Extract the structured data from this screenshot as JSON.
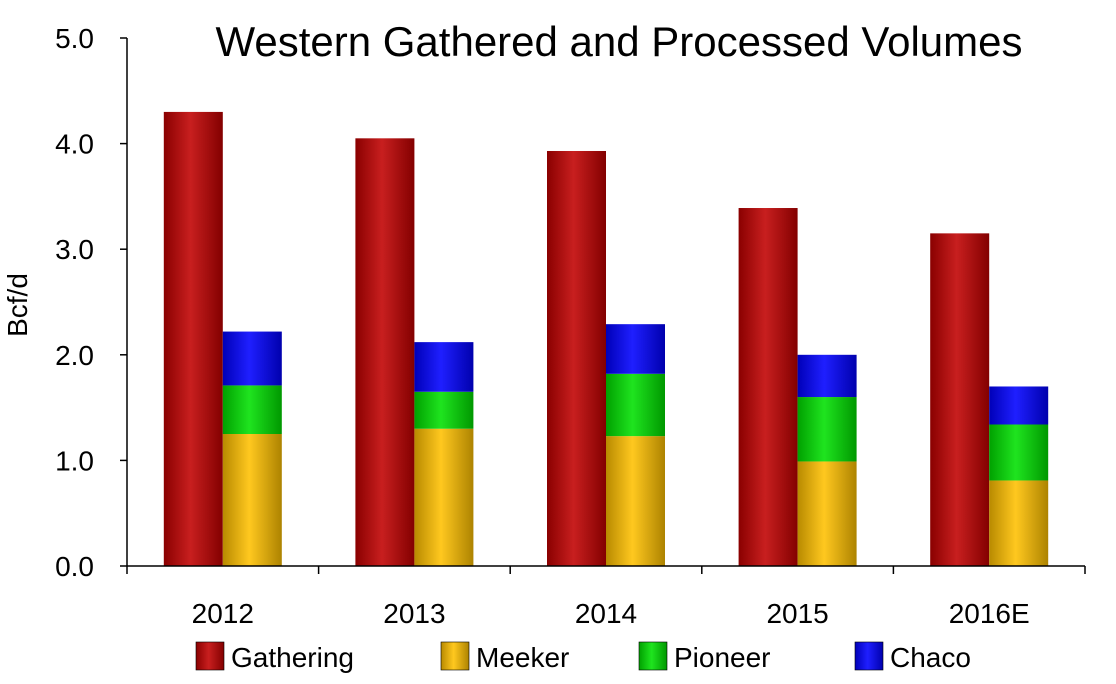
{
  "chart_data": {
    "type": "bar",
    "title": "Western Gathered and Processed Volumes",
    "xlabel": "",
    "ylabel": "Bcf/d",
    "ylim": [
      0,
      5
    ],
    "yticks": [
      "0.0",
      "1.0",
      "2.0",
      "3.0",
      "4.0",
      "5.0"
    ],
    "grid": false,
    "legend_position": "bottom",
    "categories": [
      "2012",
      "2013",
      "2014",
      "2015",
      "2016E"
    ],
    "series": [
      {
        "name": "Gathering",
        "stack": "gathered",
        "color": "#C00000",
        "values": [
          4.3,
          4.05,
          3.93,
          3.39,
          3.15
        ]
      },
      {
        "name": "Meeker",
        "stack": "processed",
        "color": "#FFC000",
        "values": [
          1.25,
          1.3,
          1.23,
          0.99,
          0.81
        ]
      },
      {
        "name": "Pioneer",
        "stack": "processed",
        "color": "#00E000",
        "values": [
          0.46,
          0.35,
          0.59,
          0.61,
          0.53
        ]
      },
      {
        "name": "Chaco",
        "stack": "processed",
        "color": "#0000FF",
        "values": [
          0.51,
          0.47,
          0.47,
          0.4,
          0.36
        ]
      }
    ]
  }
}
